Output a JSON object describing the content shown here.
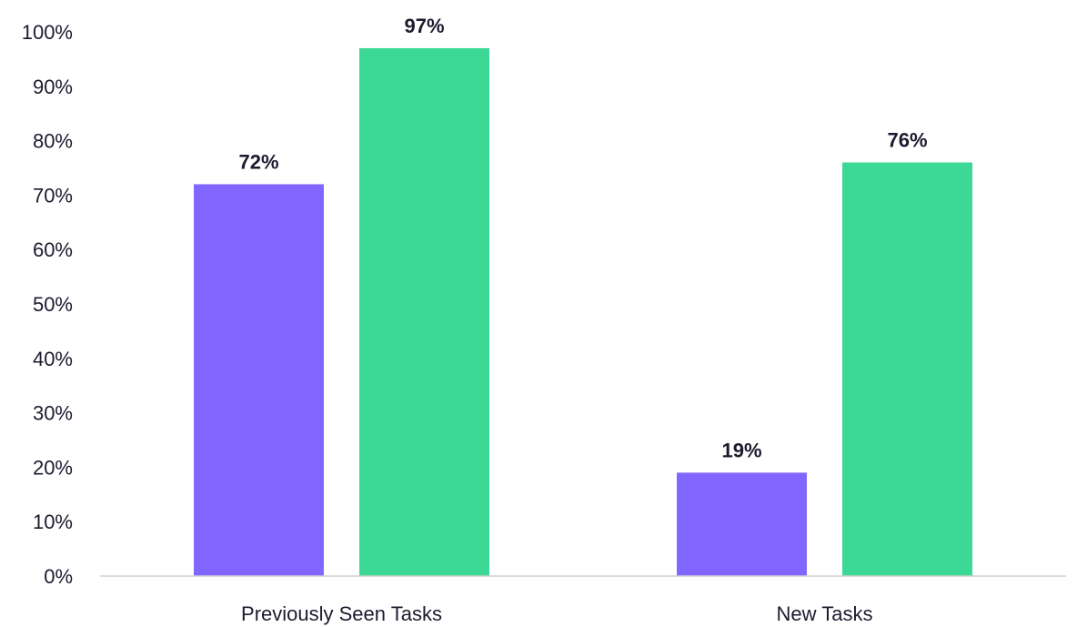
{
  "chart_data": {
    "type": "bar",
    "categories": [
      "Previously Seen Tasks",
      "New Tasks"
    ],
    "series": [
      {
        "values": [
          72,
          19
        ],
        "color": "#8167ff"
      },
      {
        "values": [
          97,
          76
        ],
        "color": "#3bd995"
      }
    ],
    "data_labels": [
      [
        "72%",
        "19%"
      ],
      [
        "97%",
        "76%"
      ]
    ],
    "ylim": [
      0,
      100
    ],
    "y_ticks": [
      "0%",
      "10%",
      "20%",
      "30%",
      "40%",
      "50%",
      "60%",
      "70%",
      "80%",
      "90%",
      "100%"
    ],
    "title": "",
    "xlabel": "",
    "ylabel": "",
    "grid": false,
    "legend": "none"
  }
}
